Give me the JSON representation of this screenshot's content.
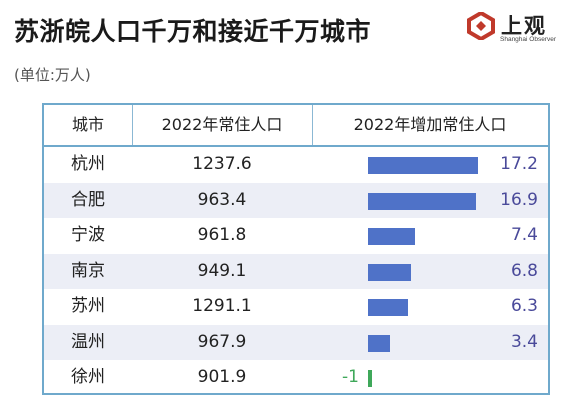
{
  "title": "苏浙皖人口千万和接近千万城市",
  "unit_note": "(单位:万人)",
  "logo": {
    "name_cn": "上观",
    "name_en": "Shanghai Observer",
    "icon": "shanghai-observer-logo",
    "color": "#c0392b"
  },
  "colors": {
    "frame": "#6fa9cc",
    "bar_positive": "#4f72c8",
    "bar_negative": "#3fa85a",
    "row_shade": "#eceef6",
    "value_text": "#4a4a9a"
  },
  "chart_data": {
    "type": "table",
    "columns": [
      "城市",
      "2022年常住人口",
      "2022年增加常住人口"
    ],
    "rows": [
      {
        "city": "杭州",
        "population": "1237.6",
        "increase": 17.2,
        "increase_label": "17.2"
      },
      {
        "city": "合肥",
        "population": "963.4",
        "increase": 16.9,
        "increase_label": "16.9"
      },
      {
        "city": "宁波",
        "population": "961.8",
        "increase": 7.4,
        "increase_label": "7.4"
      },
      {
        "city": "南京",
        "population": "949.1",
        "increase": 6.8,
        "increase_label": "6.8"
      },
      {
        "city": "苏州",
        "population": "1291.1",
        "increase": 6.3,
        "increase_label": "6.3"
      },
      {
        "city": "温州",
        "population": "967.9",
        "increase": 3.4,
        "increase_label": "3.4"
      },
      {
        "city": "徐州",
        "population": "901.9",
        "increase": -1,
        "increase_label": "-1"
      }
    ],
    "increase_range": [
      -1,
      17.2
    ]
  }
}
